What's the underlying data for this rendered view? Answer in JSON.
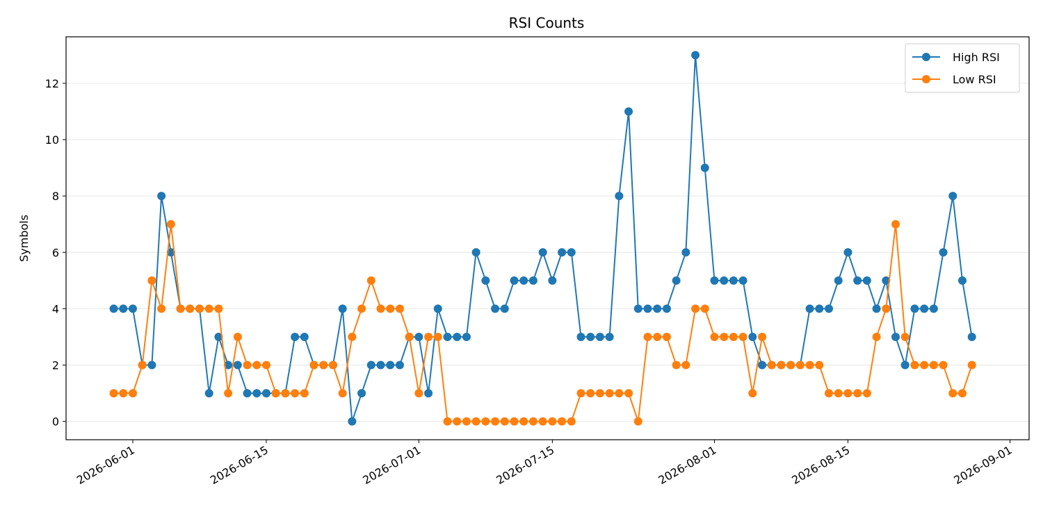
{
  "chart_data": {
    "type": "line",
    "title": "RSI Counts",
    "xlabel": "",
    "ylabel": "Symbols",
    "x_start": "2026-05-30",
    "x_tick_labels": [
      "2026-06-01",
      "2026-06-15",
      "2026-07-01",
      "2026-07-15",
      "2026-08-01",
      "2026-08-15",
      "2026-09-01"
    ],
    "xlim": [
      "2026-05-25",
      "2026-09-03"
    ],
    "y_ticks": [
      0,
      2,
      4,
      6,
      8,
      10,
      12
    ],
    "ylim": [
      -0.65,
      13.65
    ],
    "grid": "y",
    "legend": "top-right",
    "series": [
      {
        "name": "High RSI",
        "color": "#1f77b4",
        "values": [
          4,
          4,
          4,
          2,
          2,
          8,
          6,
          4,
          4,
          4,
          1,
          3,
          2,
          2,
          1,
          1,
          1,
          1,
          1,
          3,
          3,
          2,
          2,
          2,
          4,
          0,
          1,
          2,
          2,
          2,
          2,
          3,
          3,
          1,
          4,
          3,
          3,
          3,
          6,
          5,
          4,
          4,
          5,
          5,
          5,
          6,
          5,
          6,
          6,
          3,
          3,
          3,
          3,
          8,
          11,
          4,
          4,
          4,
          4,
          5,
          6,
          13,
          9,
          5,
          5,
          5,
          5,
          3,
          2,
          2,
          2,
          2,
          2,
          4,
          4,
          4,
          5,
          6,
          5,
          5,
          4,
          5,
          3,
          2,
          4,
          4,
          4,
          6,
          8,
          5,
          3
        ]
      },
      {
        "name": "Low RSI",
        "color": "#ff7f0e",
        "values": [
          1,
          1,
          1,
          2,
          5,
          4,
          7,
          4,
          4,
          4,
          4,
          4,
          1,
          3,
          2,
          2,
          2,
          1,
          1,
          1,
          1,
          2,
          2,
          2,
          1,
          3,
          4,
          5,
          4,
          4,
          4,
          3,
          1,
          3,
          3,
          0,
          0,
          0,
          0,
          0,
          0,
          0,
          0,
          0,
          0,
          0,
          0,
          0,
          0,
          1,
          1,
          1,
          1,
          1,
          1,
          0,
          3,
          3,
          3,
          2,
          2,
          4,
          4,
          3,
          3,
          3,
          3,
          1,
          3,
          2,
          2,
          2,
          2,
          2,
          2,
          1,
          1,
          1,
          1,
          1,
          3,
          4,
          7,
          3,
          2,
          2,
          2,
          2,
          1,
          1,
          2
        ]
      }
    ]
  }
}
